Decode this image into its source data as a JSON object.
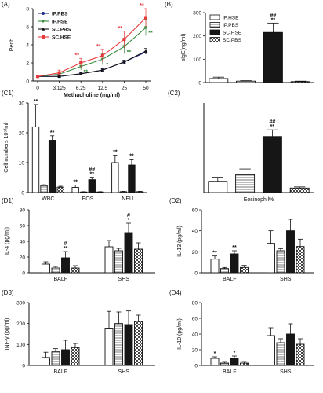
{
  "colors": {
    "ink": "#111111",
    "white": "#ffffff",
    "gray": "#cfcfcf",
    "black": "#161616",
    "red": "#e8383b",
    "green": "#3a8a3f",
    "blue": "#1e2a8c"
  },
  "chart_data": [
    {
      "panel": "(A)",
      "type": "line",
      "ylabel": "Penh",
      "xlabel": "Methacholine (mg/ml)",
      "categories": [
        "0",
        "3.125",
        "6.25",
        "12.5",
        "25",
        "50"
      ],
      "ylim": [
        0,
        8
      ],
      "yticks": [
        "0",
        "2",
        "4",
        "6",
        "8"
      ],
      "legend": "top-left",
      "series": [
        {
          "name": "IP.PBS",
          "color": "#1e2a8c",
          "values": [
            0.5,
            0.5,
            0.8,
            1.2,
            2.1,
            3.2
          ],
          "err": [
            0.05,
            0.08,
            0.1,
            0.15,
            0.2,
            0.25
          ],
          "sig": [
            "",
            "",
            "",
            "",
            "",
            ""
          ]
        },
        {
          "name": "IP.HSE",
          "color": "#3a8a3f",
          "values": [
            0.5,
            0.75,
            1.6,
            2.4,
            3.8,
            5.9
          ],
          "err": [
            0.05,
            0.2,
            0.4,
            0.6,
            0.8,
            0.9
          ],
          "sig": [
            "",
            "",
            "**",
            "*",
            "**",
            "**"
          ]
        },
        {
          "name": "SC.PBS",
          "color": "#161616",
          "values": [
            0.5,
            0.5,
            0.8,
            1.2,
            2.1,
            3.3
          ],
          "err": [
            0.05,
            0.08,
            0.1,
            0.15,
            0.2,
            0.3
          ],
          "sig": [
            "",
            "",
            "",
            "",
            "",
            ""
          ]
        },
        {
          "name": "SC.HSE",
          "color": "#e8383b",
          "values": [
            0.5,
            0.9,
            2.0,
            2.8,
            4.6,
            7.0
          ],
          "err": [
            0.05,
            0.3,
            0.5,
            0.7,
            0.9,
            1.0
          ],
          "sig": [
            "",
            "",
            "**",
            "**",
            "**",
            "**"
          ]
        }
      ]
    },
    {
      "panel": "(B)",
      "type": "bar",
      "ylabel": "sIgE(ng/ml)",
      "ylim": [
        0,
        300
      ],
      "yticks": [
        "0",
        "100",
        "200",
        "300"
      ],
      "legend": "top-left",
      "series_names": [
        "IP.HSE",
        "IP.PBS",
        "SC.HSE",
        "SC.PBS"
      ],
      "groups": [
        {
          "label": "",
          "values": [
            17,
            6,
            215,
            4
          ],
          "err": [
            6,
            2,
            40,
            2
          ],
          "sig": [
            "",
            "",
            "##\n**",
            ""
          ]
        }
      ]
    },
    {
      "panel": "(C1)",
      "type": "bar",
      "ylabel": "Cell numbers 10⁵/ml",
      "ylim": [
        0,
        30
      ],
      "yticks": [
        "0",
        "10",
        "20",
        "30"
      ],
      "groups": [
        {
          "label": "WBC",
          "values": [
            22,
            2.3,
            17.5,
            1.8
          ],
          "err": [
            7.5,
            0.3,
            1.5,
            0.3
          ],
          "sig": [
            "**",
            "",
            "**",
            ""
          ]
        },
        {
          "label": "EOS",
          "values": [
            1.7,
            0.2,
            4.3,
            0.2
          ],
          "err": [
            0.8,
            0.1,
            0.8,
            0.1
          ],
          "sig": [
            "**",
            "",
            "##\n**",
            ""
          ]
        },
        {
          "label": "NEU",
          "values": [
            10,
            0.3,
            9.2,
            0.3
          ],
          "err": [
            2.5,
            0.1,
            2,
            0.1
          ],
          "sig": [
            "**",
            "",
            "**",
            ""
          ]
        }
      ]
    },
    {
      "panel": "(C2)",
      "type": "bar",
      "ylabel": "",
      "xlabel": "Eosinophil%",
      "ylim": [
        0,
        40
      ],
      "yticks": [],
      "groups": [
        {
          "label": "",
          "values": [
            5,
            8,
            25,
            2
          ],
          "err": [
            1.8,
            2.5,
            3,
            0.5
          ],
          "sig": [
            "",
            "",
            "##\n**",
            ""
          ]
        }
      ]
    },
    {
      "panel": "(D1)",
      "type": "bar",
      "ylabel": "IL-4 (pg/ml)",
      "ylim": [
        0,
        80
      ],
      "yticks": [
        "0",
        "20",
        "40",
        "60",
        "80"
      ],
      "groups": [
        {
          "label": "BALF",
          "values": [
            11,
            6,
            19,
            6
          ],
          "err": [
            3,
            2,
            8,
            3
          ],
          "sig": [
            "",
            "",
            "#\n**",
            ""
          ]
        },
        {
          "label": "SHS",
          "values": [
            33,
            28,
            51,
            30
          ],
          "err": [
            8,
            3,
            12,
            8
          ],
          "sig": [
            "",
            "",
            "#\n*",
            ""
          ]
        }
      ]
    },
    {
      "panel": "(D2)",
      "type": "bar",
      "ylabel": "IL-13 (pg/ml)",
      "ylim": [
        0,
        60
      ],
      "yticks": [
        "0",
        "20",
        "40",
        "60"
      ],
      "groups": [
        {
          "label": "BALF",
          "values": [
            13,
            4,
            18,
            5
          ],
          "err": [
            3,
            1,
            3,
            2
          ],
          "sig": [
            "**",
            "",
            "**",
            ""
          ]
        },
        {
          "label": "SHS",
          "values": [
            28,
            21,
            40,
            25
          ],
          "err": [
            12,
            2,
            11,
            7
          ],
          "sig": [
            "",
            "",
            "",
            ""
          ]
        }
      ]
    },
    {
      "panel": "(D3)",
      "type": "bar",
      "ylabel": "INF-γ (pg/ml)",
      "ylim": [
        0,
        300
      ],
      "yticks": [
        "0",
        "100",
        "200",
        "300"
      ],
      "groups": [
        {
          "label": "BALF",
          "values": [
            38,
            65,
            75,
            85
          ],
          "err": [
            25,
            15,
            45,
            20
          ],
          "sig": [
            "",
            "",
            "",
            ""
          ]
        },
        {
          "label": "SHS",
          "values": [
            178,
            200,
            195,
            210
          ],
          "err": [
            80,
            55,
            65,
            30
          ],
          "sig": [
            "",
            "",
            "",
            ""
          ]
        }
      ]
    },
    {
      "panel": "(D4)",
      "type": "bar",
      "ylabel": "IL-10 (pg/ml)",
      "ylim": [
        0,
        80
      ],
      "yticks": [
        "0",
        "20",
        "40",
        "60",
        "80"
      ],
      "groups": [
        {
          "label": "BALF",
          "values": [
            9,
            3,
            9,
            3
          ],
          "err": [
            2,
            2,
            3,
            2
          ],
          "sig": [
            "*",
            "",
            "*",
            ""
          ]
        },
        {
          "label": "SHS",
          "values": [
            38,
            29,
            40,
            27
          ],
          "err": [
            10,
            5,
            13,
            7
          ],
          "sig": [
            "",
            "",
            "",
            ""
          ]
        }
      ]
    }
  ]
}
